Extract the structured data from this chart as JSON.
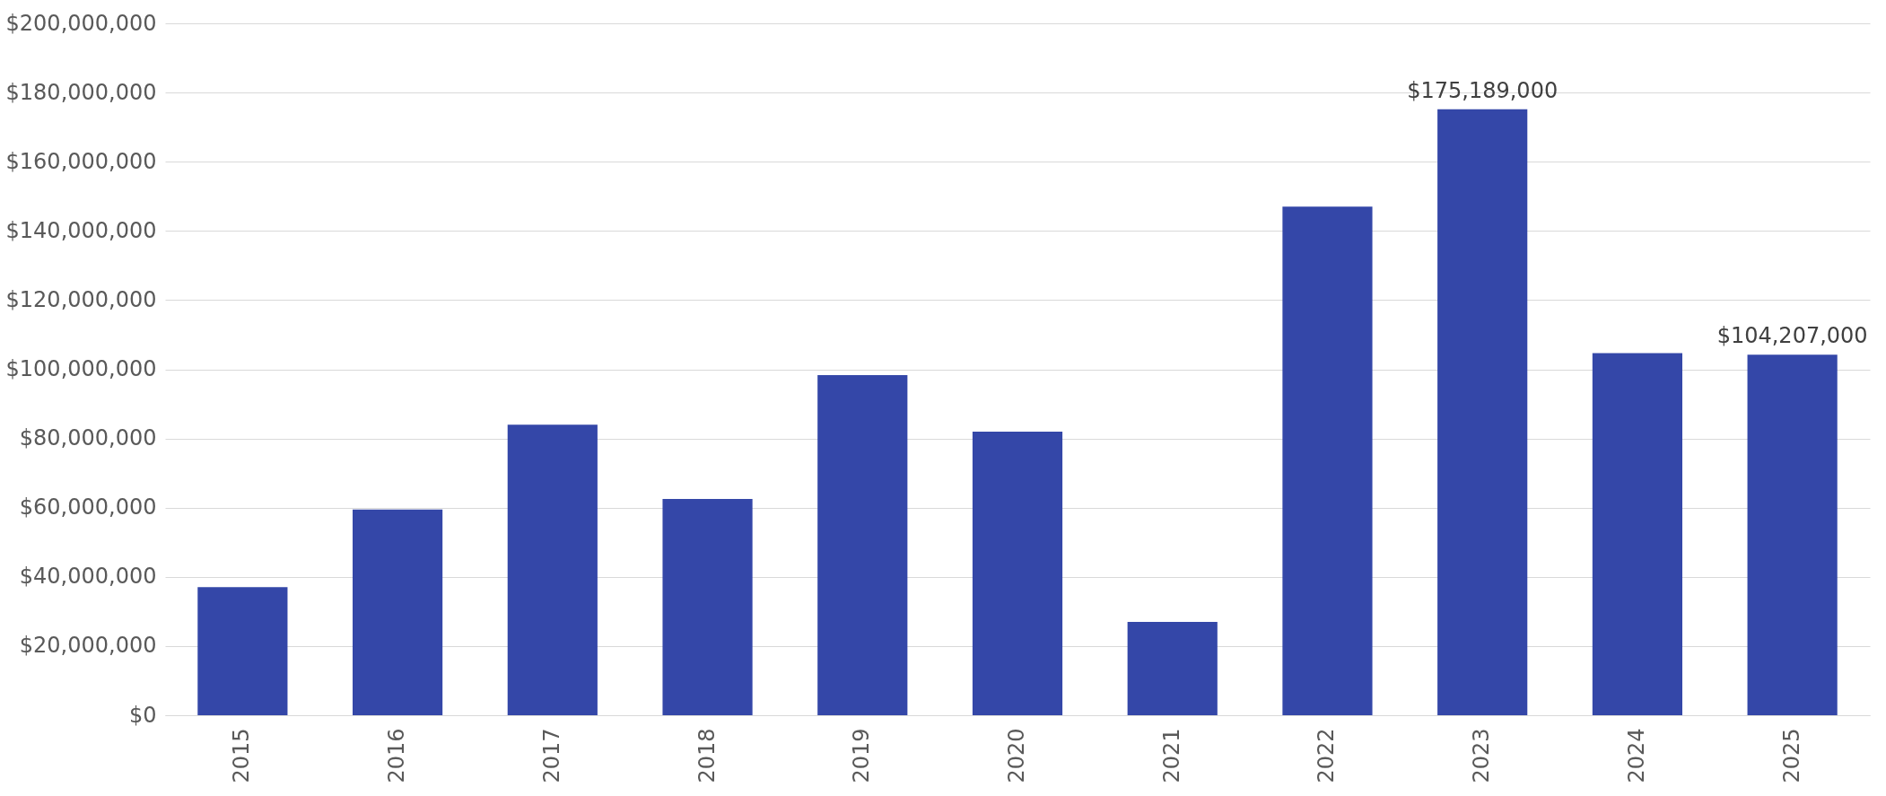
{
  "chart_data": {
    "type": "bar",
    "categories": [
      "2015",
      "2016",
      "2017",
      "2018",
      "2019",
      "2020",
      "2021",
      "2022",
      "2023",
      "2024",
      "2025"
    ],
    "values": [
      37000000,
      59500000,
      84000000,
      62500000,
      98300000,
      82000000,
      27000000,
      147000000,
      175189000,
      104700000,
      104207000
    ],
    "value_labels": [
      null,
      null,
      null,
      null,
      null,
      null,
      null,
      null,
      "$175,189,000",
      null,
      "$104,207,000"
    ],
    "color": "#3447a8",
    "ylim": [
      0,
      200000000
    ],
    "yticks": [
      {
        "value": 0,
        "label": "$0"
      },
      {
        "value": 20000000,
        "label": "$20,000,000"
      },
      {
        "value": 40000000,
        "label": "$40,000,000"
      },
      {
        "value": 60000000,
        "label": "$60,000,000"
      },
      {
        "value": 80000000,
        "label": "$80,000,000"
      },
      {
        "value": 100000000,
        "label": "$100,000,000"
      },
      {
        "value": 120000000,
        "label": "$120,000,000"
      },
      {
        "value": 140000000,
        "label": "$140,000,000"
      },
      {
        "value": 160000000,
        "label": "$160,000,000"
      },
      {
        "value": 180000000,
        "label": "$180,000,000"
      },
      {
        "value": 200000000,
        "label": "$200,000,000"
      }
    ],
    "grid": "y"
  }
}
